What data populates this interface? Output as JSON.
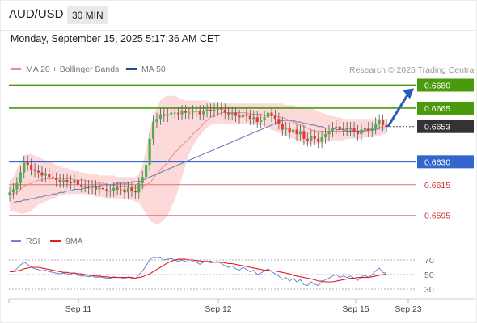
{
  "header": {
    "pair": "AUD/USD",
    "timeframe": "30 MIN",
    "datetime": "Monday, September 15, 2025 5:17:36 AM CET"
  },
  "legend": {
    "ma20_label": "MA 20 + Bollinger Bands",
    "ma50_label": "MA 50",
    "rsi_label": "RSI",
    "ma9_label": "9MA",
    "credit": "Research © 2025 Trading Central"
  },
  "colors": {
    "candle_up": "#4caf50",
    "candle_down": "#e53935",
    "bollinger_fill": "#fcd3d3",
    "ma20": "#f08a8a",
    "ma50": "#6d7fb4",
    "resistance": "#4a9a0c",
    "support_blue": "#3366cc",
    "support_red": "#e27070",
    "current": "#333333",
    "arrow": "#2a5bb8",
    "rsi": "#6e86d6",
    "rsi_ma": "#e02020"
  },
  "chart_data": [
    {
      "type": "candlestick",
      "title": "AUD/USD",
      "ylim": [
        0.6588,
        0.6685
      ],
      "x_labels": [
        "Sep 11",
        "Sep 12",
        "Sep 15",
        "Sep 23"
      ],
      "current_price": 0.6653,
      "levels": [
        {
          "value": 0.668,
          "label": "0.6680",
          "kind": "resistance"
        },
        {
          "value": 0.6665,
          "label": "0.6665",
          "kind": "resistance"
        },
        {
          "value": 0.663,
          "label": "0.6630",
          "kind": "support"
        },
        {
          "value": 0.6615,
          "label": "0.6615",
          "kind": "support"
        },
        {
          "value": 0.6595,
          "label": "0.6595",
          "kind": "support"
        }
      ],
      "current_label": "0.6653",
      "closes": [
        0.661,
        0.6612,
        0.6616,
        0.6623,
        0.663,
        0.6628,
        0.6625,
        0.6624,
        0.6623,
        0.6621,
        0.6622,
        0.662,
        0.6619,
        0.6618,
        0.6617,
        0.6618,
        0.6617,
        0.6616,
        0.6618,
        0.6615,
        0.6614,
        0.6614,
        0.6613,
        0.6614,
        0.6612,
        0.6613,
        0.6612,
        0.6611,
        0.6611,
        0.6613,
        0.6612,
        0.6612,
        0.661,
        0.6613,
        0.6611,
        0.661,
        0.6616,
        0.662,
        0.6628,
        0.6645,
        0.6656,
        0.6658,
        0.6661,
        0.666,
        0.6661,
        0.6662,
        0.6662,
        0.6661,
        0.6663,
        0.6662,
        0.6662,
        0.6663,
        0.6663,
        0.6661,
        0.6663,
        0.6664,
        0.6663,
        0.6664,
        0.6665,
        0.6664,
        0.6662,
        0.6661,
        0.6662,
        0.666,
        0.6659,
        0.6661,
        0.666,
        0.6658,
        0.6659,
        0.6656,
        0.6657,
        0.6659,
        0.6662,
        0.666,
        0.6658,
        0.6655,
        0.6651,
        0.6652,
        0.6649,
        0.6651,
        0.6648,
        0.665,
        0.6645,
        0.6644,
        0.6647,
        0.6645,
        0.6643,
        0.6646,
        0.6648,
        0.665,
        0.6652,
        0.6653,
        0.6651,
        0.6652,
        0.6651,
        0.6652,
        0.665,
        0.6648,
        0.6651,
        0.6652,
        0.665,
        0.6652,
        0.6655,
        0.6657,
        0.6654,
        0.6653
      ],
      "ma20": [
        0.6608,
        0.6609,
        0.661,
        0.6612,
        0.6614,
        0.6615,
        0.6616,
        0.6617,
        0.6618,
        0.6618,
        0.6619,
        0.6619,
        0.6619,
        0.6619,
        0.6619,
        0.6619,
        0.6619,
        0.6619,
        0.6618,
        0.6618,
        0.6618,
        0.6618,
        0.6617,
        0.6617,
        0.6616,
        0.6616,
        0.6616,
        0.6615,
        0.6615,
        0.6615,
        0.6614,
        0.6614,
        0.6614,
        0.6614,
        0.6613,
        0.6613,
        0.6613,
        0.6614,
        0.6615,
        0.6616,
        0.6619,
        0.6622,
        0.6625,
        0.6627,
        0.663,
        0.6633,
        0.6636,
        0.6638,
        0.6641,
        0.6643,
        0.6645,
        0.6648,
        0.665,
        0.6652,
        0.6655,
        0.6657,
        0.6659,
        0.666,
        0.6661,
        0.6662,
        0.6662,
        0.6662,
        0.6662,
        0.6662,
        0.6662,
        0.6662,
        0.6662,
        0.6661,
        0.6661,
        0.6661,
        0.6661,
        0.666,
        0.666,
        0.666,
        0.666,
        0.6659,
        0.6659,
        0.6658,
        0.6657,
        0.6656,
        0.6655,
        0.6654,
        0.6653,
        0.6652,
        0.6651,
        0.665,
        0.665,
        0.665,
        0.665,
        0.665,
        0.665,
        0.665,
        0.665,
        0.665,
        0.665,
        0.665,
        0.665,
        0.665,
        0.665,
        0.6651,
        0.6651,
        0.6651,
        0.6652,
        0.6652,
        0.6653,
        0.6653
      ],
      "bb_upper": [
        0.6618,
        0.662,
        0.6625,
        0.663,
        0.6634,
        0.6635,
        0.6635,
        0.6634,
        0.6633,
        0.6632,
        0.6631,
        0.663,
        0.6629,
        0.6628,
        0.6627,
        0.6626,
        0.6626,
        0.6625,
        0.6624,
        0.6624,
        0.6623,
        0.6623,
        0.6622,
        0.6622,
        0.6622,
        0.6621,
        0.6621,
        0.6621,
        0.6621,
        0.6621,
        0.662,
        0.662,
        0.662,
        0.662,
        0.662,
        0.662,
        0.6622,
        0.6628,
        0.6638,
        0.665,
        0.666,
        0.6666,
        0.667,
        0.6672,
        0.6673,
        0.6673,
        0.6673,
        0.6672,
        0.6671,
        0.667,
        0.667,
        0.667,
        0.667,
        0.667,
        0.667,
        0.667,
        0.6669,
        0.6669,
        0.6669,
        0.6668,
        0.6668,
        0.6668,
        0.6668,
        0.6668,
        0.6668,
        0.6668,
        0.6668,
        0.6668,
        0.6668,
        0.6668,
        0.6668,
        0.6668,
        0.6668,
        0.6668,
        0.6668,
        0.6668,
        0.6668,
        0.6667,
        0.6667,
        0.6667,
        0.6666,
        0.6666,
        0.6666,
        0.6665,
        0.6665,
        0.6664,
        0.6663,
        0.6662,
        0.6661,
        0.666,
        0.666,
        0.6659,
        0.6659,
        0.6658,
        0.6658,
        0.6658,
        0.6658,
        0.6658,
        0.6658,
        0.6658,
        0.6658,
        0.6658,
        0.6658,
        0.6658,
        0.6658,
        0.6658
      ],
      "bb_lower": [
        0.6598,
        0.6598,
        0.6597,
        0.6596,
        0.6596,
        0.6597,
        0.6598,
        0.66,
        0.6602,
        0.6603,
        0.6604,
        0.6605,
        0.6606,
        0.6607,
        0.6608,
        0.6608,
        0.6609,
        0.6609,
        0.6609,
        0.6609,
        0.6609,
        0.6609,
        0.6608,
        0.6608,
        0.6607,
        0.6607,
        0.6607,
        0.6606,
        0.6606,
        0.6606,
        0.6606,
        0.6606,
        0.6606,
        0.6605,
        0.6605,
        0.6604,
        0.6603,
        0.66,
        0.6596,
        0.6592,
        0.659,
        0.6589,
        0.659,
        0.6592,
        0.6595,
        0.66,
        0.6605,
        0.6612,
        0.662,
        0.6628,
        0.6635,
        0.664,
        0.6644,
        0.6647,
        0.665,
        0.6652,
        0.6654,
        0.6655,
        0.6655,
        0.6655,
        0.6655,
        0.6655,
        0.6655,
        0.6655,
        0.6655,
        0.6655,
        0.6655,
        0.6655,
        0.6655,
        0.6654,
        0.6654,
        0.6653,
        0.6652,
        0.6651,
        0.665,
        0.6649,
        0.6648,
        0.6647,
        0.6646,
        0.6645,
        0.6644,
        0.6643,
        0.6642,
        0.6642,
        0.6642,
        0.6642,
        0.6642,
        0.6642,
        0.6643,
        0.6643,
        0.6644,
        0.6644,
        0.6644,
        0.6644,
        0.6645,
        0.6645,
        0.6645,
        0.6645,
        0.6645,
        0.6646,
        0.6646,
        0.6646,
        0.6647,
        0.6647,
        0.6648,
        0.6648
      ],
      "ma50": [
        0.6603,
        0.6603,
        0.6604,
        0.6604,
        0.6605,
        0.6605,
        0.6606,
        0.6606,
        0.6607,
        0.6607,
        0.6608,
        0.6608,
        0.6609,
        0.6609,
        0.661,
        0.661,
        0.6611,
        0.6611,
        0.6612,
        0.6612,
        0.6612,
        0.6613,
        0.6613,
        0.6614,
        0.6614,
        0.6614,
        0.6615,
        0.6615,
        0.6615,
        0.6615,
        0.6616,
        0.6616,
        0.6616,
        0.6616,
        0.6617,
        0.6617,
        0.6617,
        0.6618,
        0.6619,
        0.662,
        0.6621,
        0.6622,
        0.6623,
        0.6624,
        0.6625,
        0.6626,
        0.6627,
        0.6628,
        0.6629,
        0.663,
        0.6631,
        0.6632,
        0.6633,
        0.6634,
        0.6635,
        0.6636,
        0.6637,
        0.6638,
        0.6639,
        0.664,
        0.6641,
        0.6642,
        0.6643,
        0.6644,
        0.6645,
        0.6646,
        0.6647,
        0.6648,
        0.6649,
        0.665,
        0.6651,
        0.6652,
        0.6653,
        0.6654,
        0.6655,
        0.6656,
        0.6657,
        0.6657,
        0.6657,
        0.6657,
        0.6656,
        0.6656,
        0.6655,
        0.6655,
        0.6654,
        0.6654,
        0.6653,
        0.6653,
        0.6652,
        0.6652,
        0.6652,
        0.6651,
        0.6651,
        0.6651,
        0.665,
        0.665,
        0.665,
        0.665,
        0.665,
        0.665,
        0.6651,
        0.6651,
        0.6651,
        0.6652,
        0.6652,
        0.6652
      ],
      "forecast_target": 0.668
    },
    {
      "type": "line",
      "title": "RSI",
      "ylim": [
        20,
        80
      ],
      "y_ticks": [
        70,
        50,
        30
      ],
      "series": [
        {
          "name": "RSI",
          "values": [
            55,
            54,
            58,
            63,
            67,
            64,
            60,
            58,
            57,
            55,
            56,
            54,
            53,
            52,
            51,
            52,
            51,
            50,
            53,
            49,
            48,
            48,
            47,
            48,
            46,
            47,
            46,
            45,
            45,
            47,
            46,
            46,
            44,
            47,
            45,
            44,
            50,
            55,
            62,
            70,
            74,
            73,
            74,
            70,
            71,
            72,
            70,
            68,
            70,
            68,
            67,
            68,
            67,
            64,
            67,
            68,
            66,
            67,
            68,
            65,
            62,
            60,
            62,
            58,
            56,
            60,
            57,
            54,
            56,
            50,
            52,
            55,
            58,
            54,
            51,
            48,
            43,
            46,
            41,
            45,
            40,
            43,
            36,
            35,
            40,
            37,
            35,
            40,
            43,
            45,
            48,
            50,
            46,
            48,
            46,
            48,
            45,
            42,
            47,
            49,
            46,
            50,
            55,
            59,
            53,
            52
          ]
        },
        {
          "name": "9MA",
          "values": [
            54,
            54,
            55,
            56,
            58,
            59,
            60,
            60,
            60,
            59,
            58,
            57,
            56,
            55,
            54,
            53,
            53,
            52,
            52,
            51,
            51,
            50,
            49,
            49,
            48,
            48,
            47,
            47,
            46,
            46,
            46,
            46,
            46,
            46,
            46,
            45,
            46,
            47,
            49,
            51,
            54,
            57,
            60,
            63,
            66,
            68,
            70,
            71,
            71,
            71,
            70,
            70,
            69,
            69,
            68,
            68,
            68,
            67,
            67,
            67,
            66,
            65,
            65,
            64,
            63,
            62,
            61,
            60,
            59,
            58,
            57,
            56,
            56,
            55,
            55,
            54,
            53,
            52,
            51,
            49,
            48,
            47,
            46,
            45,
            44,
            43,
            41,
            41,
            40,
            40,
            40,
            41,
            42,
            43,
            44,
            45,
            45,
            46,
            46,
            46,
            46,
            47,
            48,
            49,
            50,
            51
          ]
        }
      ]
    }
  ]
}
